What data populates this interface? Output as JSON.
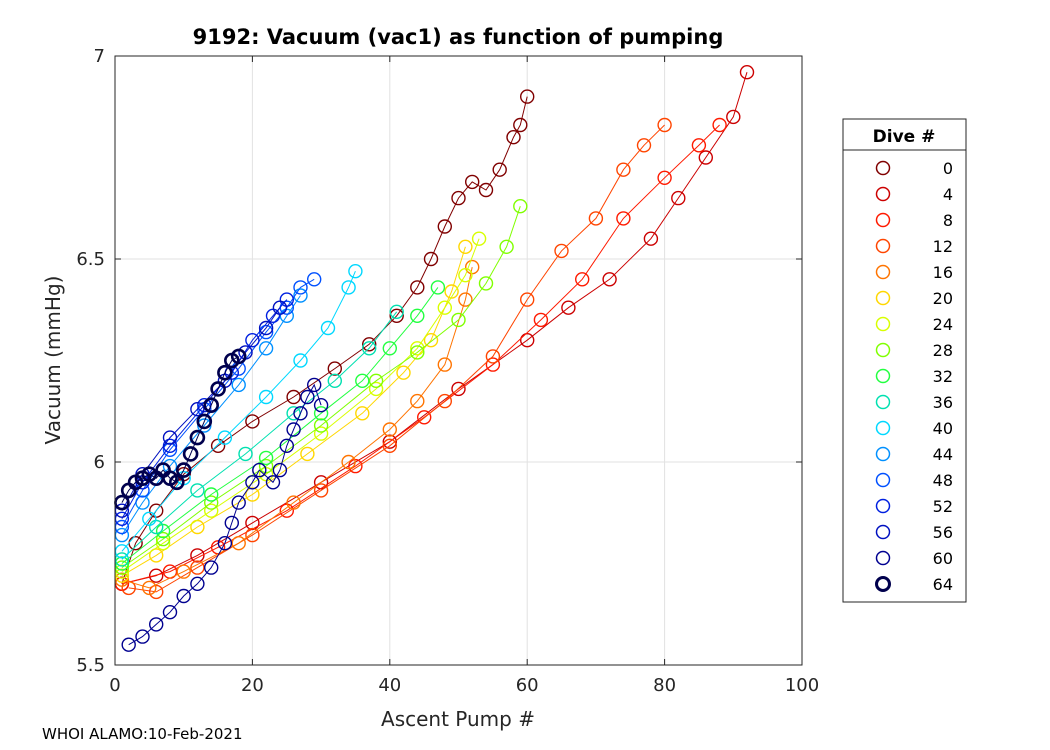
{
  "chart_data": {
    "type": "scatter",
    "title": "9192: Vacuum (vac1) as function of pumping",
    "xlabel": "Ascent Pump #",
    "ylabel": "Vacuum (mmHg)",
    "xlim": [
      0,
      100
    ],
    "ylim": [
      5.5,
      7
    ],
    "xticks": [
      0,
      20,
      40,
      60,
      80,
      100
    ],
    "yticks": [
      5.5,
      6,
      6.5,
      7
    ],
    "xtick_labels": [
      "0",
      "20",
      "40",
      "60",
      "80",
      "100"
    ],
    "ytick_labels": [
      "5.5",
      "6",
      "6.5",
      "7"
    ],
    "grid": true,
    "legend": {
      "title": "Dive #",
      "placement": "right-outside"
    },
    "series": [
      {
        "name": "0",
        "color": "#800000",
        "points": [
          [
            1,
            5.7
          ],
          [
            3,
            5.8
          ],
          [
            6,
            5.88
          ],
          [
            10,
            5.97
          ],
          [
            15,
            6.04
          ],
          [
            20,
            6.1
          ],
          [
            26,
            6.16
          ],
          [
            32,
            6.23
          ],
          [
            37,
            6.29
          ],
          [
            41,
            6.36
          ],
          [
            44,
            6.43
          ],
          [
            46,
            6.5
          ],
          [
            48,
            6.58
          ],
          [
            50,
            6.65
          ],
          [
            52,
            6.69
          ],
          [
            54,
            6.67
          ],
          [
            56,
            6.72
          ],
          [
            58,
            6.8
          ],
          [
            59,
            6.83
          ],
          [
            60,
            6.9
          ]
        ]
      },
      {
        "name": "4",
        "color": "#cc0000",
        "points": [
          [
            1,
            5.7
          ],
          [
            6,
            5.72
          ],
          [
            12,
            5.77
          ],
          [
            20,
            5.85
          ],
          [
            30,
            5.95
          ],
          [
            40,
            6.05
          ],
          [
            50,
            6.18
          ],
          [
            60,
            6.3
          ],
          [
            66,
            6.38
          ],
          [
            72,
            6.45
          ],
          [
            78,
            6.55
          ],
          [
            82,
            6.65
          ],
          [
            86,
            6.75
          ],
          [
            90,
            6.85
          ],
          [
            92,
            6.96
          ]
        ]
      },
      {
        "name": "8",
        "color": "#ff1a00",
        "points": [
          [
            1,
            5.7
          ],
          [
            8,
            5.73
          ],
          [
            15,
            5.79
          ],
          [
            25,
            5.88
          ],
          [
            35,
            5.99
          ],
          [
            45,
            6.11
          ],
          [
            55,
            6.24
          ],
          [
            62,
            6.35
          ],
          [
            68,
            6.45
          ],
          [
            74,
            6.6
          ],
          [
            80,
            6.7
          ],
          [
            85,
            6.78
          ],
          [
            88,
            6.83
          ]
        ]
      },
      {
        "name": "12",
        "color": "#ff4500",
        "points": [
          [
            2,
            5.69
          ],
          [
            6,
            5.68
          ],
          [
            12,
            5.74
          ],
          [
            20,
            5.82
          ],
          [
            30,
            5.93
          ],
          [
            40,
            6.04
          ],
          [
            48,
            6.15
          ],
          [
            55,
            6.26
          ],
          [
            60,
            6.4
          ],
          [
            65,
            6.52
          ],
          [
            70,
            6.6
          ],
          [
            74,
            6.72
          ],
          [
            77,
            6.78
          ],
          [
            80,
            6.83
          ]
        ]
      },
      {
        "name": "16",
        "color": "#ff7400",
        "points": [
          [
            1,
            5.71
          ],
          [
            5,
            5.69
          ],
          [
            10,
            5.73
          ],
          [
            18,
            5.8
          ],
          [
            26,
            5.9
          ],
          [
            34,
            6.0
          ],
          [
            40,
            6.08
          ],
          [
            44,
            6.15
          ],
          [
            48,
            6.24
          ],
          [
            51,
            6.4
          ],
          [
            52,
            6.48
          ]
        ]
      },
      {
        "name": "20",
        "color": "#ffd700",
        "points": [
          [
            1,
            5.72
          ],
          [
            6,
            5.77
          ],
          [
            12,
            5.84
          ],
          [
            20,
            5.92
          ],
          [
            28,
            6.02
          ],
          [
            36,
            6.12
          ],
          [
            42,
            6.22
          ],
          [
            46,
            6.3
          ],
          [
            49,
            6.42
          ],
          [
            51,
            6.53
          ]
        ]
      },
      {
        "name": "24",
        "color": "#d8ff00",
        "points": [
          [
            1,
            5.73
          ],
          [
            7,
            5.8
          ],
          [
            14,
            5.88
          ],
          [
            22,
            5.97
          ],
          [
            30,
            6.07
          ],
          [
            38,
            6.18
          ],
          [
            44,
            6.28
          ],
          [
            48,
            6.38
          ],
          [
            51,
            6.46
          ],
          [
            53,
            6.55
          ]
        ]
      },
      {
        "name": "28",
        "color": "#80ff00",
        "points": [
          [
            1,
            5.74
          ],
          [
            7,
            5.81
          ],
          [
            14,
            5.9
          ],
          [
            22,
            5.99
          ],
          [
            30,
            6.09
          ],
          [
            38,
            6.2
          ],
          [
            44,
            6.27
          ],
          [
            50,
            6.35
          ],
          [
            54,
            6.44
          ],
          [
            57,
            6.53
          ],
          [
            59,
            6.63
          ]
        ]
      },
      {
        "name": "32",
        "color": "#22ff40",
        "points": [
          [
            1,
            5.75
          ],
          [
            7,
            5.83
          ],
          [
            14,
            5.92
          ],
          [
            22,
            6.01
          ],
          [
            30,
            6.12
          ],
          [
            36,
            6.2
          ],
          [
            40,
            6.28
          ],
          [
            44,
            6.36
          ],
          [
            47,
            6.43
          ]
        ]
      },
      {
        "name": "36",
        "color": "#00e0b0",
        "points": [
          [
            1,
            5.76
          ],
          [
            6,
            5.84
          ],
          [
            12,
            5.93
          ],
          [
            19,
            6.02
          ],
          [
            26,
            6.12
          ],
          [
            32,
            6.2
          ],
          [
            37,
            6.28
          ],
          [
            41,
            6.37
          ]
        ]
      },
      {
        "name": "40",
        "color": "#00d8ff",
        "points": [
          [
            1,
            5.78
          ],
          [
            5,
            5.86
          ],
          [
            10,
            5.96
          ],
          [
            16,
            6.06
          ],
          [
            22,
            6.16
          ],
          [
            27,
            6.25
          ],
          [
            31,
            6.33
          ],
          [
            34,
            6.43
          ],
          [
            35,
            6.47
          ]
        ]
      },
      {
        "name": "44",
        "color": "#0090ff",
        "points": [
          [
            1,
            5.82
          ],
          [
            4,
            5.9
          ],
          [
            8,
            5.99
          ],
          [
            13,
            6.09
          ],
          [
            18,
            6.19
          ],
          [
            22,
            6.28
          ],
          [
            25,
            6.36
          ],
          [
            27,
            6.41
          ]
        ]
      },
      {
        "name": "48",
        "color": "#0050ff",
        "points": [
          [
            1,
            5.84
          ],
          [
            4,
            5.93
          ],
          [
            8,
            6.03
          ],
          [
            13,
            6.13
          ],
          [
            18,
            6.23
          ],
          [
            22,
            6.32
          ],
          [
            25,
            6.38
          ],
          [
            27,
            6.43
          ],
          [
            29,
            6.45
          ]
        ]
      },
      {
        "name": "52",
        "color": "#0020e0",
        "points": [
          [
            1,
            5.86
          ],
          [
            4,
            5.95
          ],
          [
            8,
            6.04
          ],
          [
            13,
            6.14
          ],
          [
            17,
            6.22
          ],
          [
            20,
            6.3
          ],
          [
            23,
            6.36
          ],
          [
            25,
            6.4
          ]
        ]
      },
      {
        "name": "56",
        "color": "#0010c0",
        "points": [
          [
            1,
            5.88
          ],
          [
            4,
            5.97
          ],
          [
            8,
            6.06
          ],
          [
            12,
            6.13
          ],
          [
            16,
            6.2
          ],
          [
            19,
            6.27
          ],
          [
            22,
            6.33
          ],
          [
            24,
            6.38
          ]
        ]
      },
      {
        "name": "60",
        "color": "#000090",
        "points": [
          [
            2,
            5.55
          ],
          [
            4,
            5.57
          ],
          [
            6,
            5.6
          ],
          [
            8,
            5.63
          ],
          [
            10,
            5.67
          ],
          [
            12,
            5.7
          ],
          [
            14,
            5.74
          ],
          [
            16,
            5.8
          ],
          [
            17,
            5.85
          ],
          [
            18,
            5.9
          ],
          [
            20,
            5.95
          ],
          [
            21,
            5.98
          ],
          [
            23,
            5.95
          ],
          [
            24,
            5.98
          ],
          [
            25,
            6.04
          ],
          [
            26,
            6.08
          ],
          [
            27,
            6.12
          ],
          [
            28,
            6.16
          ],
          [
            29,
            6.19
          ],
          [
            30,
            6.14
          ]
        ]
      },
      {
        "name": "64",
        "color": "#00004d",
        "bold": true,
        "points": [
          [
            1,
            5.9
          ],
          [
            2,
            5.93
          ],
          [
            3,
            5.95
          ],
          [
            4,
            5.96
          ],
          [
            5,
            5.97
          ],
          [
            6,
            5.96
          ],
          [
            7,
            5.98
          ],
          [
            8,
            5.96
          ],
          [
            9,
            5.95
          ],
          [
            10,
            5.98
          ],
          [
            11,
            6.02
          ],
          [
            12,
            6.06
          ],
          [
            13,
            6.1
          ],
          [
            14,
            6.14
          ],
          [
            15,
            6.18
          ],
          [
            16,
            6.22
          ],
          [
            17,
            6.25
          ],
          [
            18,
            6.26
          ]
        ]
      }
    ]
  },
  "footer": {
    "text": "WHOI ALAMO:10-Feb-2021"
  }
}
